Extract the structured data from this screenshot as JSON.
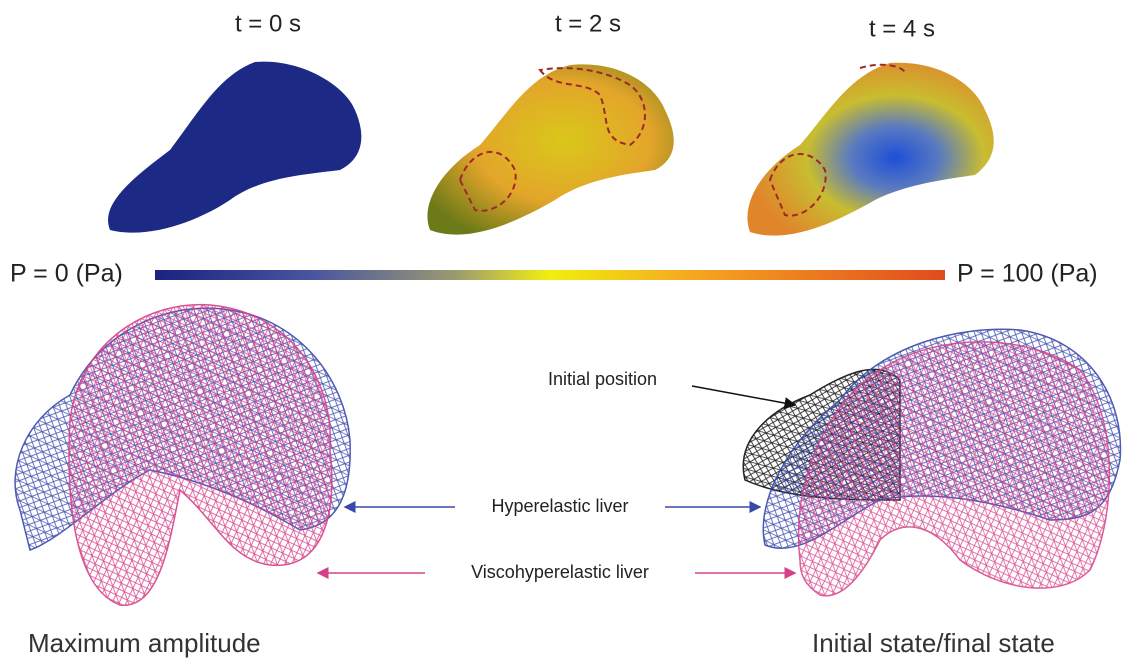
{
  "panels": [
    {
      "time_label": "t = 0 s"
    },
    {
      "time_label": "t = 2 s"
    },
    {
      "time_label": "t = 4 s"
    }
  ],
  "colorbar": {
    "min_label": "P = 0 (Pa)",
    "max_label": "P = 100 (Pa)"
  },
  "annotations": {
    "initial_position": "Initial position",
    "hyperelastic": "Hyperelastic liver",
    "viscohyperelastic": "Viscohyperelastic liver"
  },
  "captions": {
    "left": "Maximum amplitude",
    "right": "Initial state/final state"
  }
}
